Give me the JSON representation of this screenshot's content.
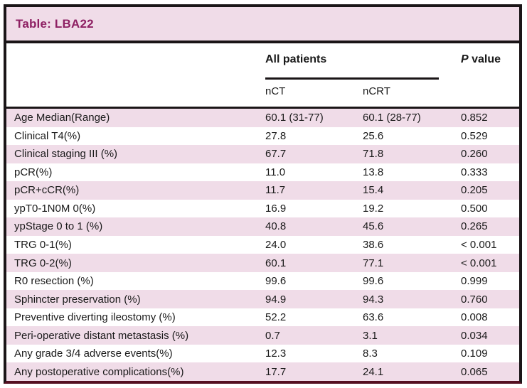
{
  "title": "Table: LBA22",
  "header": {
    "group_label": "All patients",
    "p_italic": "P",
    "p_rest": "value",
    "sub_columns": [
      "nCT",
      "nCRT"
    ]
  },
  "chart_data": {
    "type": "table",
    "title": "Table: LBA22",
    "column_group": "All patients",
    "columns": [
      "",
      "nCT",
      "nCRT",
      "P value"
    ],
    "rows": [
      {
        "label": "Age Median(Range)",
        "nct": "60.1 (31-77)",
        "ncrt": "60.1 (28-77)",
        "p": "0.852"
      },
      {
        "label": "Clinical T4(%)",
        "nct": "27.8",
        "ncrt": "25.6",
        "p": "0.529"
      },
      {
        "label": "Clinical staging III (%)",
        "nct": "67.7",
        "ncrt": "71.8",
        "p": "0.260"
      },
      {
        "label": "pCR(%)",
        "nct": "11.0",
        "ncrt": "13.8",
        "p": "0.333"
      },
      {
        "label": "pCR+cCR(%)",
        "nct": "11.7",
        "ncrt": "15.4",
        "p": "0.205"
      },
      {
        "label": "ypT0-1N0M 0(%)",
        "nct": "16.9",
        "ncrt": "19.2",
        "p": "0.500"
      },
      {
        "label": "ypStage 0 to 1 (%)",
        "nct": "40.8",
        "ncrt": "45.6",
        "p": "0.265"
      },
      {
        "label": "TRG 0-1(%)",
        "nct": "24.0",
        "ncrt": "38.6",
        "p": "< 0.001"
      },
      {
        "label": "TRG 0-2(%)",
        "nct": "60.1",
        "ncrt": "77.1",
        "p": "< 0.001"
      },
      {
        "label": "R0 resection (%)",
        "nct": "99.6",
        "ncrt": "99.6",
        "p": "0.999"
      },
      {
        "label": "Sphincter preservation (%)",
        "nct": "94.9",
        "ncrt": "94.3",
        "p": "0.760"
      },
      {
        "label": "Preventive diverting ileostomy (%)",
        "nct": "52.2",
        "ncrt": "63.6",
        "p": "0.008"
      },
      {
        "label": "Peri-operative distant metastasis (%)",
        "nct": "0.7",
        "ncrt": "3.1",
        "p": "0.034"
      },
      {
        "label": "Any grade 3/4 adverse events(%)",
        "nct": "12.3",
        "ncrt": "8.3",
        "p": "0.109"
      },
      {
        "label": "Any postoperative complications(%)",
        "nct": "17.7",
        "ncrt": "24.1",
        "p": "0.065"
      }
    ]
  },
  "colors": {
    "pink": "#f0dce8",
    "titlecolor": "#8e2063",
    "border": "#1a1517",
    "text": "#1a1a1a",
    "bottomline": "#551022"
  }
}
